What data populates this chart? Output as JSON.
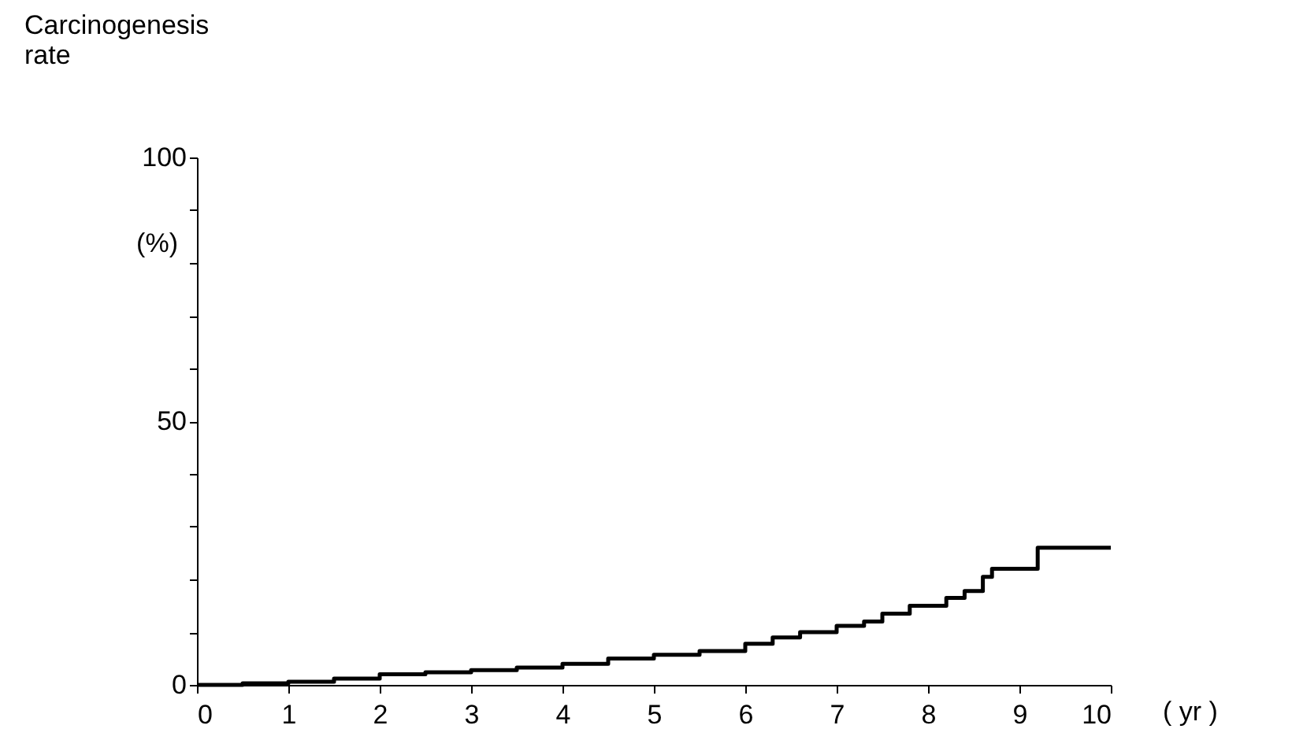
{
  "chart_data": {
    "type": "step",
    "ylabel": "Carcinogenesis rate",
    "xlabel": "( yr )",
    "annotations": [
      "(%)"
    ],
    "x": [
      0,
      0.5,
      1,
      1.5,
      2,
      2.5,
      3,
      3.5,
      4,
      4.5,
      5,
      5.5,
      6,
      6.3,
      6.6,
      7,
      7.3,
      7.5,
      7.8,
      8.2,
      8.4,
      8.6,
      8.7,
      9.2,
      10
    ],
    "series": [
      {
        "color": "#000000",
        "values": [
          0,
          0.3,
          0.6,
          1.2,
          2,
          2.4,
          2.8,
          3.3,
          4,
          5,
          5.7,
          6.4,
          7.8,
          9,
          10,
          11.2,
          12,
          13.5,
          15,
          16.5,
          17.8,
          20.5,
          22,
          26,
          26
        ]
      }
    ],
    "xlim": [
      0,
      10
    ],
    "xticks": [
      0,
      1,
      2,
      3,
      4,
      5,
      6,
      7,
      8,
      9,
      10
    ],
    "ylim": [
      0,
      100
    ],
    "yticks": [
      0,
      {
        "value": 10,
        "label": null
      },
      {
        "value": 20,
        "label": null
      },
      {
        "value": 30,
        "label": null
      },
      {
        "value": 40,
        "label": null
      },
      50,
      {
        "value": 60,
        "label": null
      },
      {
        "value": 70,
        "label": null
      },
      {
        "value": 80,
        "label": null
      },
      {
        "value": 90,
        "label": null
      },
      100
    ],
    "grid": false,
    "marker": "none",
    "line_style": "solid"
  }
}
